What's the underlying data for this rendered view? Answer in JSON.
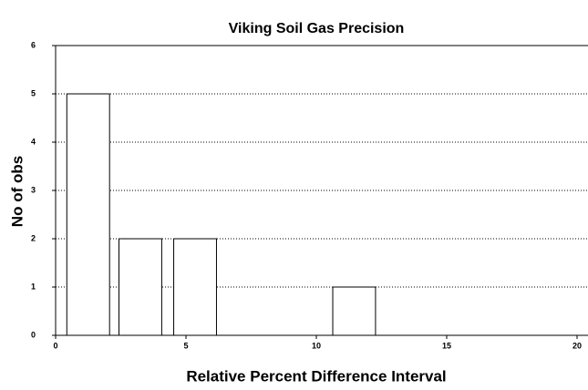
{
  "chart_data": {
    "type": "bar",
    "title": "Viking Soil Gas Precision",
    "x_label": "Relative Percent Difference Interval",
    "y_label": "No of obs",
    "x": [
      1.25,
      3.25,
      5.35,
      11.45
    ],
    "values": [
      5,
      2,
      2,
      1
    ],
    "color": "#ffffff",
    "xlim": [
      0,
      20
    ],
    "xticks": [
      0,
      5,
      10,
      15,
      20
    ],
    "ylim": [
      0,
      6
    ],
    "yticks": [
      0,
      1,
      2,
      3,
      4,
      5,
      6
    ],
    "grid": true
  }
}
